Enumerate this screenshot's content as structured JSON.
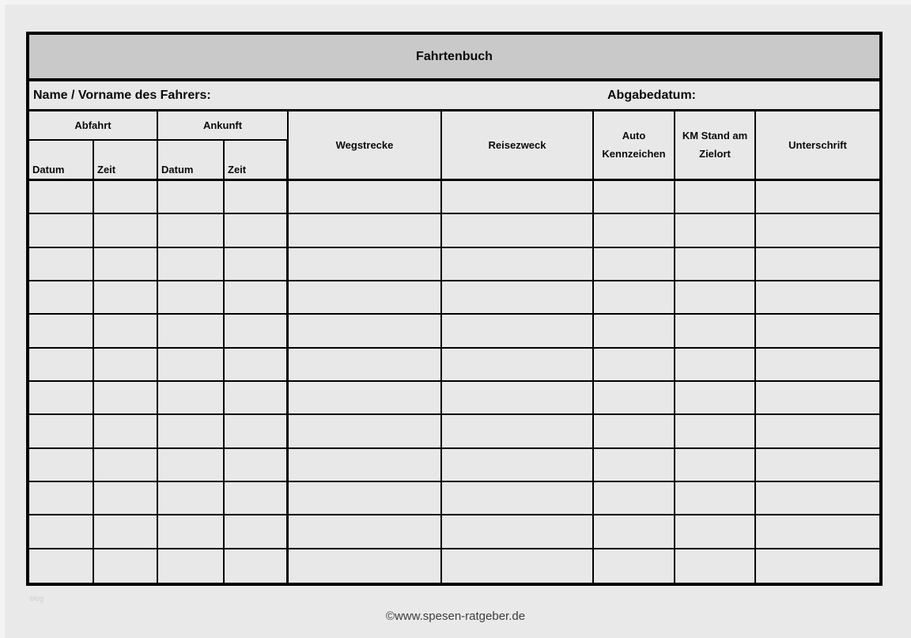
{
  "page": {
    "background_color": "#e9e9e9",
    "watermark_text": "blog",
    "footer_credit": "©www.spesen-ratgeber.de"
  },
  "form": {
    "title": "Fahrtenbuch",
    "title_bar_color": "#c9c9c9",
    "driver_name_label": "Name / Vorname des Fahrers:",
    "submission_date_label": "Abgabedatum:",
    "columns": {
      "departure_group": "Abfahrt",
      "arrival_group": "Ankunft",
      "departure_date": "Datum",
      "departure_time": "Zeit",
      "arrival_date": "Datum",
      "arrival_time": "Zeit",
      "route": "Wegstrecke",
      "trip_purpose": "Reisezweck",
      "license_plate": "Auto\nKennzeichen",
      "odometer_at_destination": "KM Stand am\nZielort",
      "signature": "Unterschrift"
    },
    "column_keys": [
      "abfahrt-datum",
      "abfahrt-zeit",
      "ankunft-datum",
      "ankunft-zeit",
      "wegstrecke",
      "reisezweck",
      "auto-kennzeichen",
      "km-stand-zielort",
      "unterschrift"
    ],
    "body_row_count": 12,
    "body_cells_empty": true
  }
}
